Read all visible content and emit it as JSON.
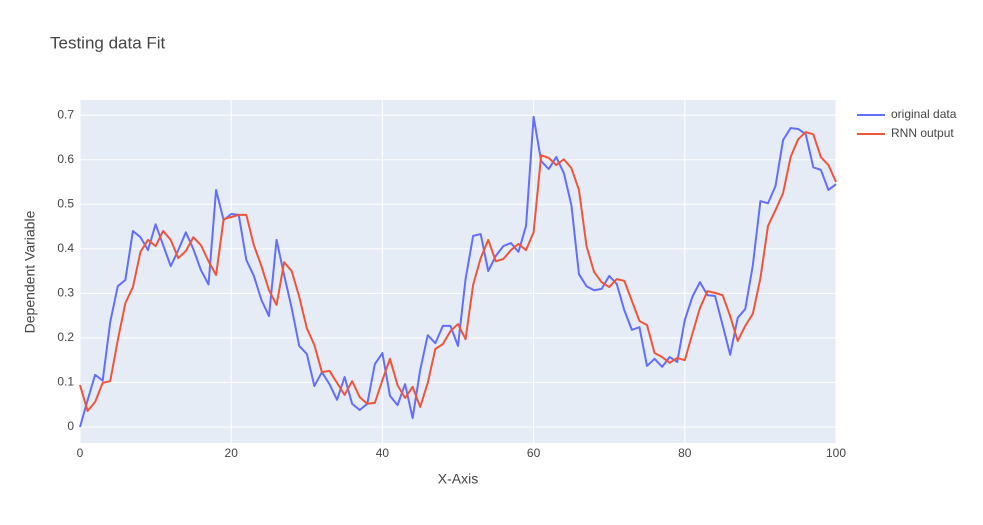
{
  "chart_data": {
    "type": "line",
    "title": "Testing data Fit",
    "x_label": "X-Axis",
    "y_label": "Dependent Variable",
    "xlim": [
      0,
      100
    ],
    "ylim": [
      -0.036,
      0.734
    ],
    "xticks": [
      0,
      20,
      40,
      60,
      80,
      100
    ],
    "yticks": [
      0,
      0.1,
      0.2,
      0.3,
      0.4,
      0.5,
      0.6,
      0.7
    ],
    "grid": true,
    "x": [
      0,
      1,
      2,
      3,
      4,
      5,
      6,
      7,
      8,
      9,
      10,
      11,
      12,
      13,
      14,
      15,
      16,
      17,
      18,
      19,
      20,
      21,
      22,
      23,
      24,
      25,
      26,
      27,
      28,
      29,
      30,
      31,
      32,
      33,
      34,
      35,
      36,
      37,
      38,
      39,
      40,
      41,
      42,
      43,
      44,
      45,
      46,
      47,
      48,
      49,
      50,
      51,
      52,
      53,
      54,
      55,
      56,
      57,
      58,
      59,
      60,
      61,
      62,
      63,
      64,
      65,
      66,
      67,
      68,
      69,
      70,
      71,
      72,
      73,
      74,
      75,
      76,
      77,
      78,
      79,
      80,
      81,
      82,
      83,
      84,
      85,
      86,
      87,
      88,
      89,
      90,
      91,
      92,
      93,
      94,
      95,
      96,
      97,
      98,
      99,
      100
    ],
    "series": [
      {
        "name": "original data",
        "color": "#636efa",
        "values": [
          0.0,
          0.06,
          0.117,
          0.104,
          0.236,
          0.316,
          0.33,
          0.44,
          0.426,
          0.397,
          0.455,
          0.408,
          0.361,
          0.397,
          0.437,
          0.399,
          0.352,
          0.32,
          0.532,
          0.464,
          0.478,
          0.476,
          0.375,
          0.339,
          0.285,
          0.249,
          0.42,
          0.341,
          0.267,
          0.182,
          0.164,
          0.092,
          0.123,
          0.096,
          0.061,
          0.112,
          0.052,
          0.038,
          0.052,
          0.141,
          0.166,
          0.07,
          0.049,
          0.096,
          0.02,
          0.128,
          0.206,
          0.188,
          0.227,
          0.227,
          0.182,
          0.332,
          0.429,
          0.433,
          0.35,
          0.384,
          0.406,
          0.413,
          0.393,
          0.451,
          0.696,
          0.597,
          0.579,
          0.606,
          0.57,
          0.498,
          0.343,
          0.316,
          0.307,
          0.31,
          0.339,
          0.321,
          0.262,
          0.218,
          0.224,
          0.137,
          0.153,
          0.135,
          0.157,
          0.146,
          0.24,
          0.292,
          0.325,
          0.296,
          0.294,
          0.229,
          0.162,
          0.245,
          0.265,
          0.363,
          0.507,
          0.502,
          0.541,
          0.644,
          0.671,
          0.669,
          0.657,
          0.583,
          0.577,
          0.532,
          0.545
        ]
      },
      {
        "name": "RNN output",
        "color": "#ef553b",
        "values": [
          0.094,
          0.036,
          0.056,
          0.099,
          0.103,
          0.195,
          0.278,
          0.314,
          0.393,
          0.42,
          0.406,
          0.44,
          0.42,
          0.379,
          0.395,
          0.426,
          0.408,
          0.372,
          0.341,
          0.467,
          0.471,
          0.476,
          0.476,
          0.408,
          0.361,
          0.307,
          0.274,
          0.37,
          0.35,
          0.292,
          0.222,
          0.184,
          0.123,
          0.126,
          0.099,
          0.072,
          0.103,
          0.067,
          0.052,
          0.054,
          0.105,
          0.153,
          0.094,
          0.065,
          0.09,
          0.045,
          0.099,
          0.175,
          0.186,
          0.215,
          0.231,
          0.197,
          0.319,
          0.379,
          0.42,
          0.372,
          0.377,
          0.397,
          0.411,
          0.397,
          0.437,
          0.61,
          0.604,
          0.588,
          0.601,
          0.581,
          0.532,
          0.406,
          0.348,
          0.325,
          0.314,
          0.332,
          0.328,
          0.283,
          0.238,
          0.229,
          0.166,
          0.157,
          0.144,
          0.155,
          0.15,
          0.209,
          0.267,
          0.305,
          0.301,
          0.296,
          0.249,
          0.193,
          0.227,
          0.254,
          0.334,
          0.451,
          0.487,
          0.525,
          0.606,
          0.646,
          0.662,
          0.657,
          0.606,
          0.588,
          0.55
        ]
      }
    ]
  }
}
